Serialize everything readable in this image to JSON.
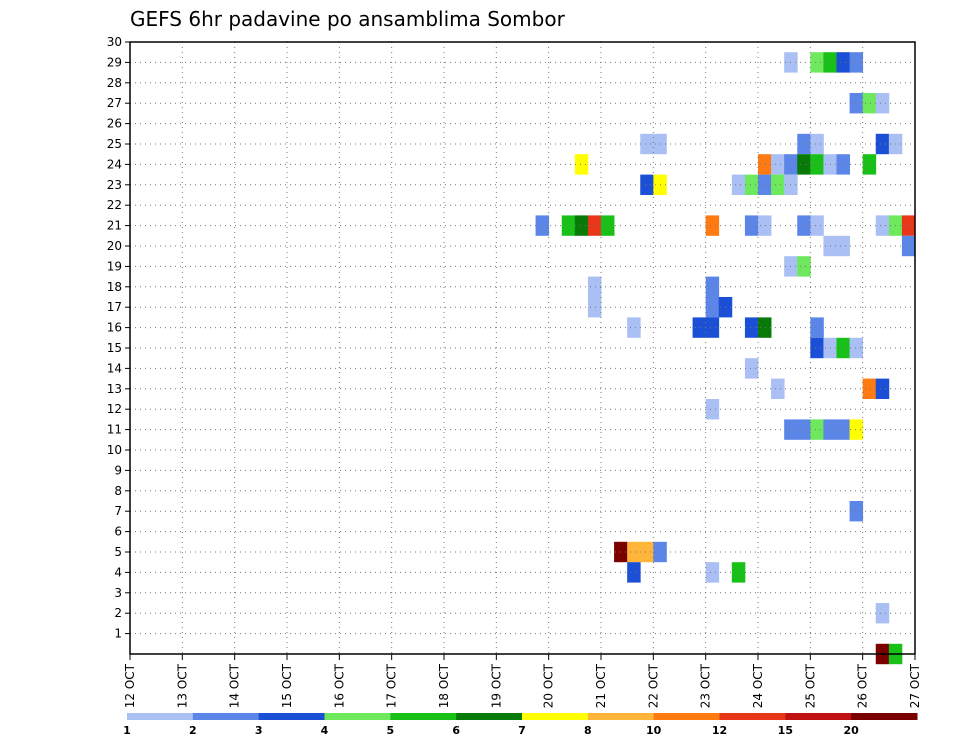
{
  "chart_data": {
    "type": "heatmap",
    "title": "GEFS 6hr padavine po ansamblima Sombor",
    "xlabel": "",
    "ylabel": "",
    "x_ticks": [
      "12 OCT",
      "13 OCT",
      "14 OCT",
      "15 OCT",
      "16 OCT",
      "17 OCT",
      "18 OCT",
      "19 OCT",
      "20 OCT",
      "21 OCT",
      "22 OCT",
      "23 OCT",
      "24 OCT",
      "25 OCT",
      "26 OCT",
      "27 OCT"
    ],
    "y_ticks": [
      1,
      2,
      3,
      4,
      5,
      6,
      7,
      8,
      9,
      10,
      11,
      12,
      13,
      14,
      15,
      16,
      17,
      18,
      19,
      20,
      21,
      22,
      23,
      24,
      25,
      26,
      27,
      28,
      29,
      30
    ],
    "xlim_days": [
      12,
      27
    ],
    "ylim": [
      0,
      30
    ],
    "grid": true,
    "colorbar": {
      "labels": [
        "1",
        "2",
        "3",
        "4",
        "5",
        "6",
        "7",
        "8",
        "10",
        "12",
        "15",
        "20"
      ],
      "colors": [
        "#aabff3",
        "#5b86e8",
        "#1a4fd6",
        "#6ee85c",
        "#18c018",
        "#087a08",
        "#ffff00",
        "#ffb43a",
        "#ff7a10",
        "#e8361a",
        "#c01010",
        "#7a0000"
      ]
    },
    "cells": [
      {
        "member": 29,
        "day": 24.5,
        "level": 1
      },
      {
        "member": 29,
        "day": 25.0,
        "level": 4
      },
      {
        "member": 29,
        "day": 25.25,
        "level": 5
      },
      {
        "member": 29,
        "day": 25.5,
        "level": 3
      },
      {
        "member": 29,
        "day": 25.75,
        "level": 2
      },
      {
        "member": 27,
        "day": 25.75,
        "level": 2
      },
      {
        "member": 27,
        "day": 26.0,
        "level": 4
      },
      {
        "member": 27,
        "day": 26.25,
        "level": 1
      },
      {
        "member": 25,
        "day": 21.75,
        "level": 1
      },
      {
        "member": 25,
        "day": 22.0,
        "level": 1
      },
      {
        "member": 25,
        "day": 24.75,
        "level": 2
      },
      {
        "member": 25,
        "day": 25.0,
        "level": 1
      },
      {
        "member": 25,
        "day": 26.25,
        "level": 3
      },
      {
        "member": 25,
        "day": 26.5,
        "level": 1
      },
      {
        "member": 24,
        "day": 20.5,
        "level": 7
      },
      {
        "member": 24,
        "day": 24.0,
        "level": 9
      },
      {
        "member": 24,
        "day": 24.25,
        "level": 1
      },
      {
        "member": 24,
        "day": 24.5,
        "level": 2
      },
      {
        "member": 24,
        "day": 24.75,
        "level": 6
      },
      {
        "member": 24,
        "day": 25.0,
        "level": 5
      },
      {
        "member": 24,
        "day": 25.25,
        "level": 1
      },
      {
        "member": 24,
        "day": 25.5,
        "level": 2
      },
      {
        "member": 24,
        "day": 26.0,
        "level": 5
      },
      {
        "member": 23,
        "day": 21.75,
        "level": 3
      },
      {
        "member": 23,
        "day": 22.0,
        "level": 7
      },
      {
        "member": 23,
        "day": 23.5,
        "level": 1
      },
      {
        "member": 23,
        "day": 23.75,
        "level": 4
      },
      {
        "member": 23,
        "day": 24.0,
        "level": 2
      },
      {
        "member": 23,
        "day": 24.25,
        "level": 4
      },
      {
        "member": 23,
        "day": 24.5,
        "level": 1
      },
      {
        "member": 21,
        "day": 19.75,
        "level": 2
      },
      {
        "member": 21,
        "day": 20.25,
        "level": 5
      },
      {
        "member": 21,
        "day": 20.5,
        "level": 6
      },
      {
        "member": 21,
        "day": 20.75,
        "level": 10
      },
      {
        "member": 21,
        "day": 21.0,
        "level": 5
      },
      {
        "member": 21,
        "day": 23.0,
        "level": 9
      },
      {
        "member": 21,
        "day": 23.75,
        "level": 2
      },
      {
        "member": 21,
        "day": 24.0,
        "level": 1
      },
      {
        "member": 21,
        "day": 24.75,
        "level": 2
      },
      {
        "member": 21,
        "day": 25.0,
        "level": 1
      },
      {
        "member": 21,
        "day": 26.25,
        "level": 1
      },
      {
        "member": 21,
        "day": 26.5,
        "level": 4
      },
      {
        "member": 21,
        "day": 26.75,
        "level": 10
      },
      {
        "member": 20,
        "day": 25.25,
        "level": 1
      },
      {
        "member": 20,
        "day": 25.5,
        "level": 1
      },
      {
        "member": 20,
        "day": 26.75,
        "level": 2
      },
      {
        "member": 19,
        "day": 24.5,
        "level": 1
      },
      {
        "member": 19,
        "day": 24.75,
        "level": 4
      },
      {
        "member": 18,
        "day": 20.75,
        "level": 1
      },
      {
        "member": 18,
        "day": 23.0,
        "level": 2
      },
      {
        "member": 17,
        "day": 20.75,
        "level": 1
      },
      {
        "member": 17,
        "day": 23.0,
        "level": 2
      },
      {
        "member": 17,
        "day": 23.25,
        "level": 3
      },
      {
        "member": 16,
        "day": 21.5,
        "level": 1
      },
      {
        "member": 16,
        "day": 22.75,
        "level": 3
      },
      {
        "member": 16,
        "day": 23.0,
        "level": 3
      },
      {
        "member": 16,
        "day": 23.75,
        "level": 3
      },
      {
        "member": 16,
        "day": 24.0,
        "level": 6
      },
      {
        "member": 16,
        "day": 25.0,
        "level": 2
      },
      {
        "member": 15,
        "day": 25.0,
        "level": 3
      },
      {
        "member": 15,
        "day": 25.25,
        "level": 1
      },
      {
        "member": 15,
        "day": 25.5,
        "level": 5
      },
      {
        "member": 15,
        "day": 25.75,
        "level": 1
      },
      {
        "member": 14,
        "day": 23.75,
        "level": 1
      },
      {
        "member": 13,
        "day": 24.25,
        "level": 1
      },
      {
        "member": 13,
        "day": 26.0,
        "level": 9
      },
      {
        "member": 13,
        "day": 26.25,
        "level": 3
      },
      {
        "member": 12,
        "day": 23.0,
        "level": 1
      },
      {
        "member": 11,
        "day": 24.5,
        "level": 2
      },
      {
        "member": 11,
        "day": 24.75,
        "level": 2
      },
      {
        "member": 11,
        "day": 25.0,
        "level": 4
      },
      {
        "member": 11,
        "day": 25.25,
        "level": 2
      },
      {
        "member": 11,
        "day": 25.5,
        "level": 2
      },
      {
        "member": 11,
        "day": 25.75,
        "level": 7
      },
      {
        "member": 7,
        "day": 25.75,
        "level": 2
      },
      {
        "member": 5,
        "day": 21.25,
        "level": 12
      },
      {
        "member": 5,
        "day": 21.5,
        "level": 8
      },
      {
        "member": 5,
        "day": 21.75,
        "level": 8
      },
      {
        "member": 5,
        "day": 22.0,
        "level": 2
      },
      {
        "member": 4,
        "day": 21.5,
        "level": 3
      },
      {
        "member": 4,
        "day": 23.0,
        "level": 1
      },
      {
        "member": 4,
        "day": 23.5,
        "level": 5
      },
      {
        "member": 2,
        "day": 26.25,
        "level": 1
      },
      {
        "member": 0,
        "day": 26.25,
        "level": 12
      },
      {
        "member": 0,
        "day": 26.5,
        "level": 5
      }
    ]
  }
}
